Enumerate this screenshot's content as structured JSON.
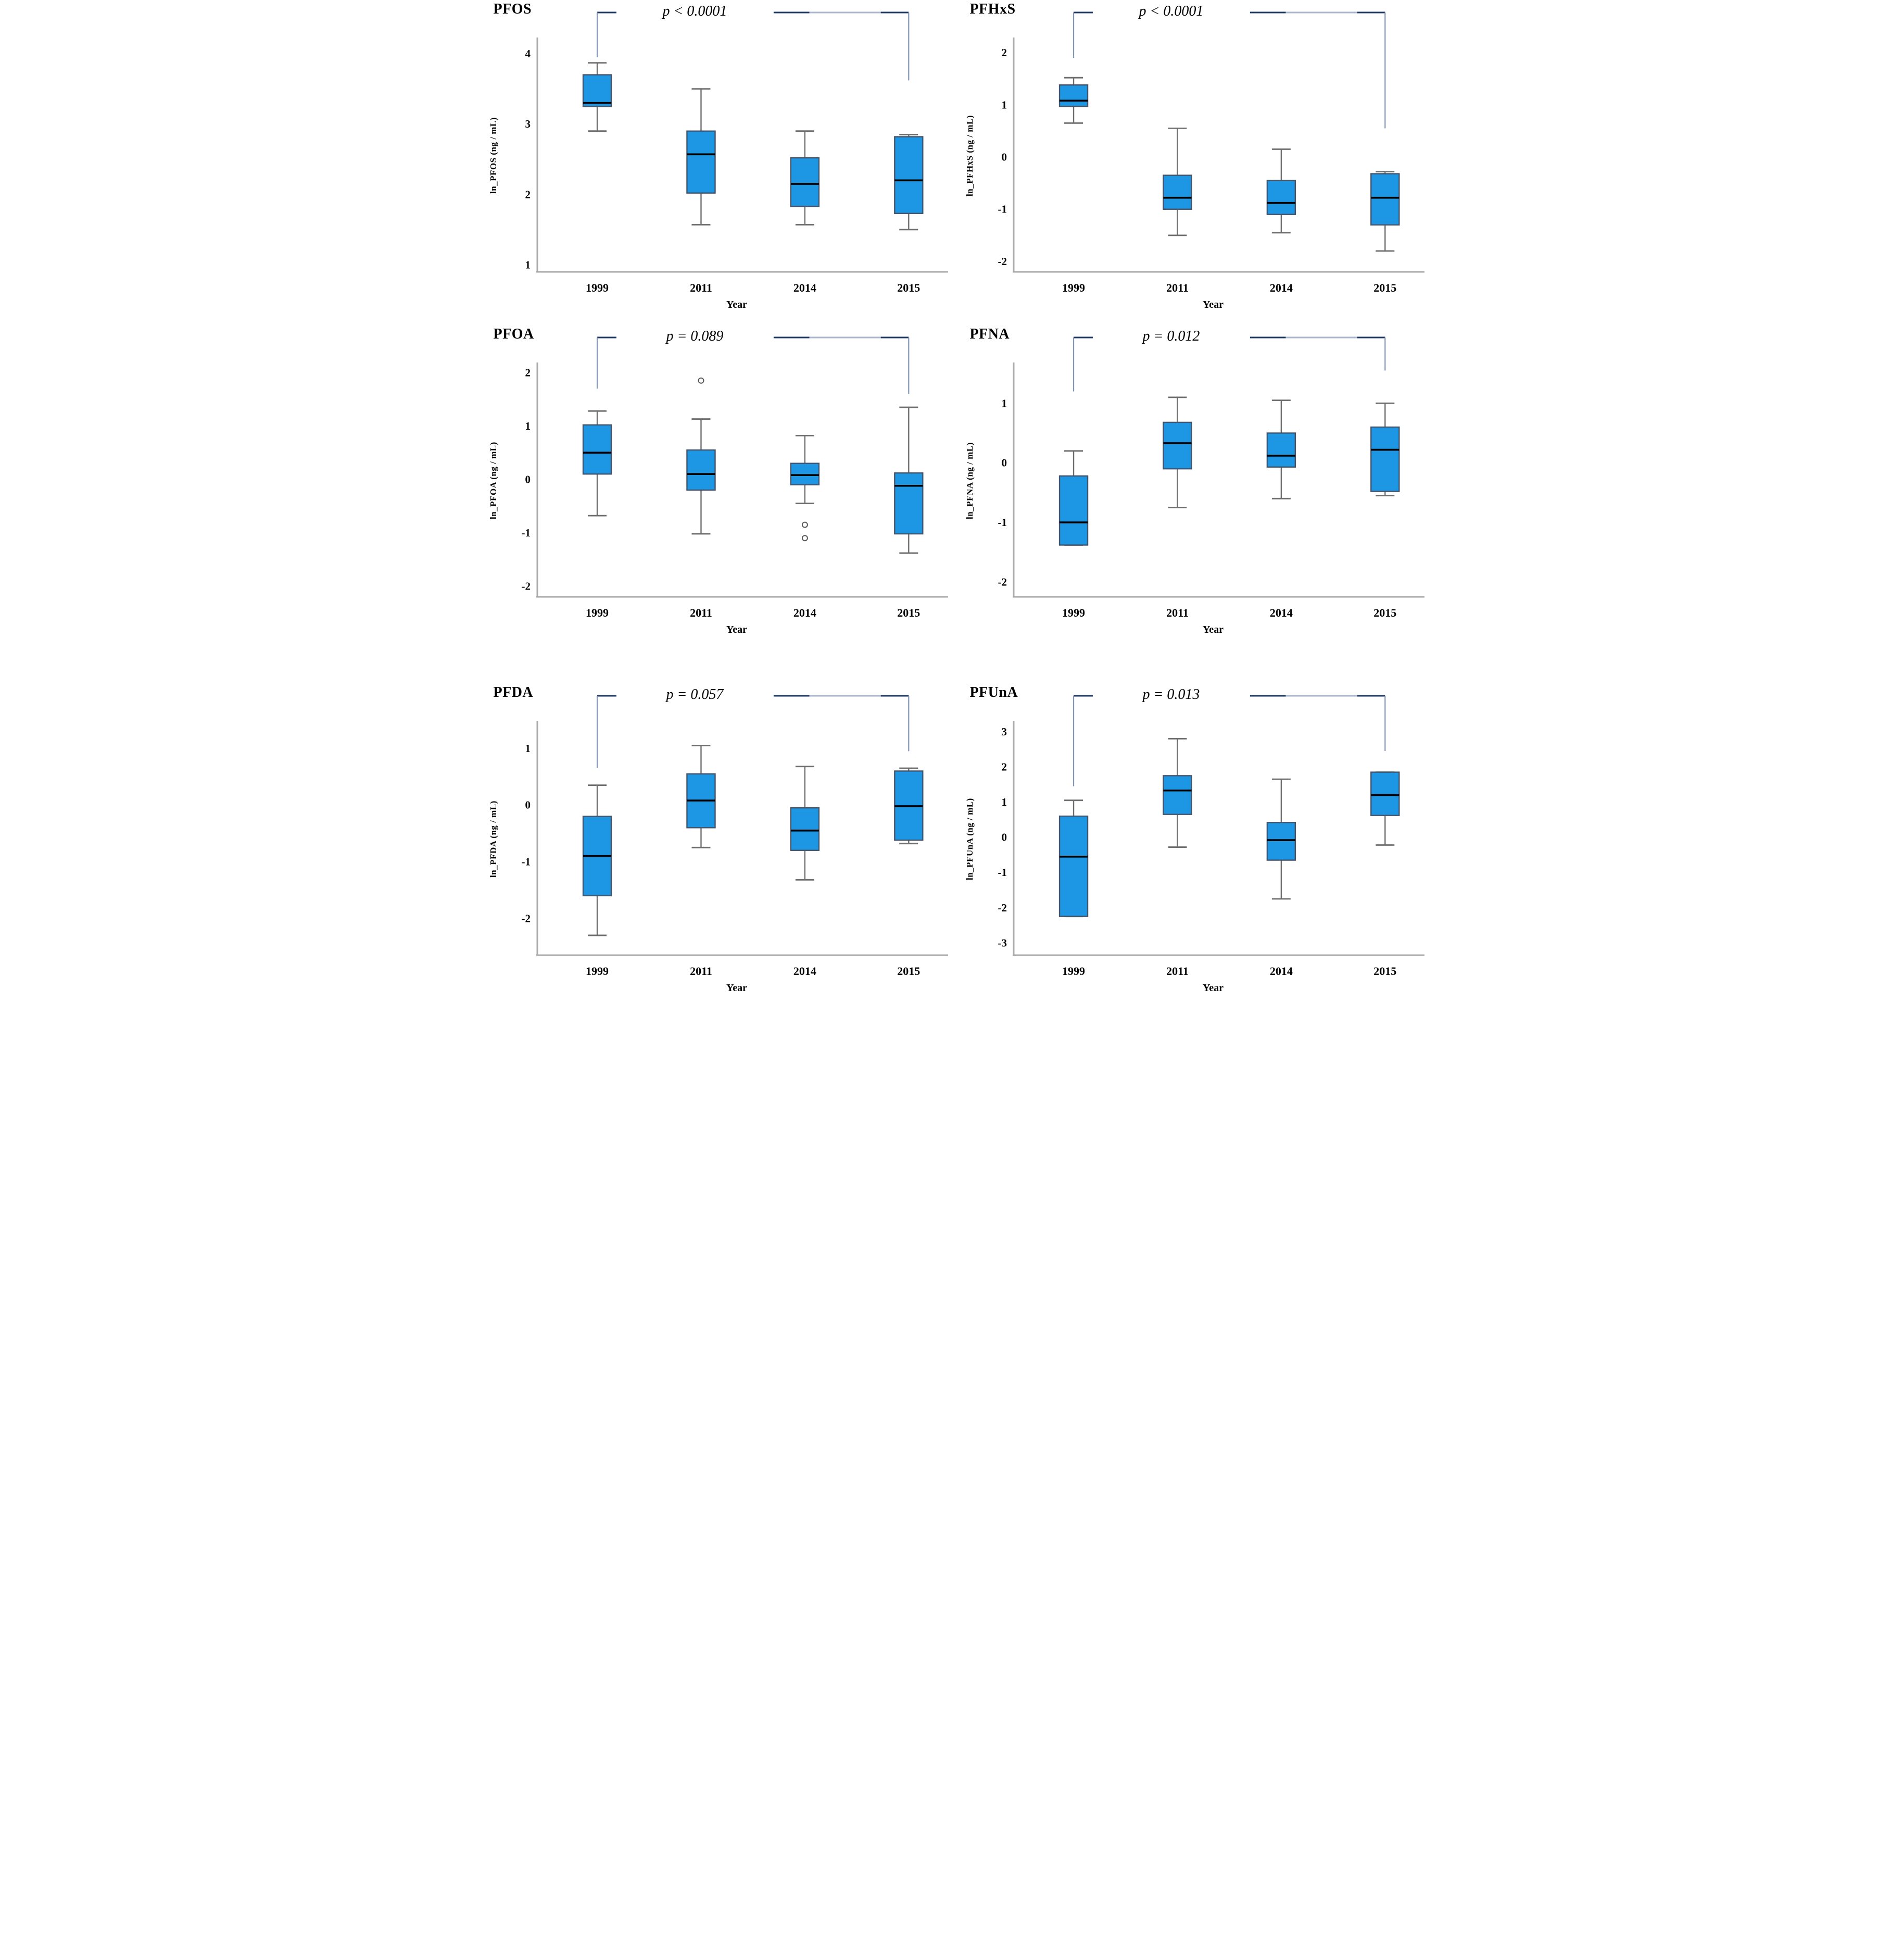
{
  "figure": {
    "background": "#ffffff",
    "columns": 2,
    "rows": 3
  },
  "style": {
    "box_fill": "#1D96E4",
    "box_border": "#44546A",
    "median_color": "#000000",
    "whisker_color": "#6E6E6E",
    "axis_color": "#ABABAB",
    "bracket_dark": "#1F3864",
    "bracket_light": "#8496B8",
    "bracket_light2": "#A9B6CE",
    "outlier_color": "#595959",
    "text_color": "#000000"
  },
  "chart_data": [
    {
      "type": "box",
      "title": "PFOS",
      "xlabel": "Year",
      "ylabel": "ln_PFOS (ng / mL)",
      "categories": [
        "1999",
        "2011",
        "2014",
        "2015"
      ],
      "ylim": [
        0.9,
        4.2
      ],
      "yticks": [
        1,
        2,
        3,
        4
      ],
      "annotation": {
        "text": "p < 0.0001",
        "compare": [
          "1999",
          "2015"
        ],
        "left_stop": 3.95,
        "right_stop": 3.62
      },
      "boxes": [
        {
          "category": "1999",
          "low": 2.9,
          "q1": 3.25,
          "median": 3.3,
          "q3": 3.7,
          "high": 3.87,
          "outliers": []
        },
        {
          "category": "2011",
          "low": 1.57,
          "q1": 2.02,
          "median": 2.57,
          "q3": 2.9,
          "high": 3.5,
          "outliers": []
        },
        {
          "category": "2014",
          "low": 1.57,
          "q1": 1.83,
          "median": 2.15,
          "q3": 2.52,
          "high": 2.9,
          "outliers": []
        },
        {
          "category": "2015",
          "low": 1.5,
          "q1": 1.73,
          "median": 2.2,
          "q3": 2.82,
          "high": 2.85,
          "outliers": []
        }
      ]
    },
    {
      "type": "box",
      "title": "PFHxS",
      "xlabel": "Year",
      "ylabel": "ln_PFHxS (ng / mL)",
      "categories": [
        "1999",
        "2011",
        "2014",
        "2015"
      ],
      "ylim": [
        -2.2,
        2.25
      ],
      "yticks": [
        -2,
        -1,
        0,
        1,
        2
      ],
      "annotation": {
        "text": "p < 0.0001",
        "compare": [
          "1999",
          "2015"
        ],
        "left_stop": 1.9,
        "right_stop": 0.55
      },
      "boxes": [
        {
          "category": "1999",
          "low": 0.65,
          "q1": 0.97,
          "median": 1.08,
          "q3": 1.38,
          "high": 1.52,
          "outliers": []
        },
        {
          "category": "2011",
          "low": -1.5,
          "q1": -1.0,
          "median": -0.78,
          "q3": -0.35,
          "high": 0.55,
          "outliers": []
        },
        {
          "category": "2014",
          "low": -1.45,
          "q1": -1.1,
          "median": -0.88,
          "q3": -0.45,
          "high": 0.15,
          "outliers": []
        },
        {
          "category": "2015",
          "low": -1.8,
          "q1": -1.3,
          "median": -0.78,
          "q3": -0.32,
          "high": -0.28,
          "outliers": []
        }
      ]
    },
    {
      "type": "box",
      "title": "PFOA",
      "xlabel": "Year",
      "ylabel": "ln_PFOA (ng / mL)",
      "categories": [
        "1999",
        "2011",
        "2014",
        "2015"
      ],
      "ylim": [
        -2.2,
        2.15
      ],
      "yticks": [
        -2,
        -1,
        0,
        1,
        2
      ],
      "annotation": {
        "text": "p = 0.089",
        "compare": [
          "1999",
          "2015"
        ],
        "left_stop": 1.7,
        "right_stop": 1.6
      },
      "boxes": [
        {
          "category": "1999",
          "low": -0.68,
          "q1": 0.1,
          "median": 0.5,
          "q3": 1.02,
          "high": 1.28,
          "outliers": []
        },
        {
          "category": "2011",
          "low": -1.02,
          "q1": -0.2,
          "median": 0.1,
          "q3": 0.55,
          "high": 1.13,
          "outliers": [
            1.85
          ]
        },
        {
          "category": "2014",
          "low": -0.45,
          "q1": -0.1,
          "median": 0.08,
          "q3": 0.3,
          "high": 0.82,
          "outliers": [
            -0.85,
            -1.1
          ]
        },
        {
          "category": "2015",
          "low": -1.38,
          "q1": -1.02,
          "median": -0.12,
          "q3": 0.12,
          "high": 1.35,
          "outliers": []
        }
      ]
    },
    {
      "type": "box",
      "title": "PFNA",
      "xlabel": "Year",
      "ylabel": "ln_PFNA (ng / mL)",
      "categories": [
        "1999",
        "2011",
        "2014",
        "2015"
      ],
      "ylim": [
        -2.25,
        1.65
      ],
      "yticks": [
        -2,
        -1,
        0,
        1
      ],
      "annotation": {
        "text": "p = 0.012",
        "compare": [
          "1999",
          "2015"
        ],
        "left_stop": 1.2,
        "right_stop": 1.55
      },
      "boxes": [
        {
          "category": "1999",
          "low": -1.38,
          "q1": -1.38,
          "median": -1.0,
          "q3": -0.22,
          "high": 0.2,
          "outliers": []
        },
        {
          "category": "2011",
          "low": -0.75,
          "q1": -0.1,
          "median": 0.33,
          "q3": 0.68,
          "high": 1.1,
          "outliers": []
        },
        {
          "category": "2014",
          "low": -0.6,
          "q1": -0.07,
          "median": 0.12,
          "q3": 0.5,
          "high": 1.05,
          "outliers": []
        },
        {
          "category": "2015",
          "low": -0.55,
          "q1": -0.48,
          "median": 0.22,
          "q3": 0.6,
          "high": 1.0,
          "outliers": []
        }
      ]
    },
    {
      "type": "box",
      "title": "PFDA",
      "xlabel": "Year",
      "ylabel": "ln_PFDA (ng / mL)",
      "categories": [
        "1999",
        "2011",
        "2014",
        "2015"
      ],
      "ylim": [
        -2.65,
        1.45
      ],
      "yticks": [
        -2,
        -1,
        0,
        1
      ],
      "annotation": {
        "text": "p = 0.057",
        "compare": [
          "1999",
          "2015"
        ],
        "left_stop": 0.65,
        "right_stop": 0.95
      },
      "boxes": [
        {
          "category": "1999",
          "low": -2.3,
          "q1": -1.6,
          "median": -0.9,
          "q3": -0.2,
          "high": 0.35,
          "outliers": []
        },
        {
          "category": "2011",
          "low": -0.75,
          "q1": -0.4,
          "median": 0.08,
          "q3": 0.55,
          "high": 1.05,
          "outliers": []
        },
        {
          "category": "2014",
          "low": -1.32,
          "q1": -0.8,
          "median": -0.45,
          "q3": -0.05,
          "high": 0.68,
          "outliers": []
        },
        {
          "category": "2015",
          "low": -0.68,
          "q1": -0.62,
          "median": -0.02,
          "q3": 0.6,
          "high": 0.65,
          "outliers": []
        }
      ]
    },
    {
      "type": "box",
      "title": "PFUnA",
      "xlabel": "Year",
      "ylabel": "ln_PFUnA (ng / mL)",
      "categories": [
        "1999",
        "2011",
        "2014",
        "2015"
      ],
      "ylim": [
        -3.35,
        3.25
      ],
      "yticks": [
        -3,
        -2,
        -1,
        0,
        1,
        2,
        3
      ],
      "annotation": {
        "text": "p = 0.013",
        "compare": [
          "1999",
          "2015"
        ],
        "left_stop": 1.45,
        "right_stop": 2.45
      },
      "boxes": [
        {
          "category": "1999",
          "low": -2.25,
          "q1": -2.25,
          "median": -0.55,
          "q3": 0.6,
          "high": 1.05,
          "outliers": []
        },
        {
          "category": "2011",
          "low": -0.28,
          "q1": 0.65,
          "median": 1.33,
          "q3": 1.75,
          "high": 2.8,
          "outliers": []
        },
        {
          "category": "2014",
          "low": -1.75,
          "q1": -0.65,
          "median": -0.08,
          "q3": 0.42,
          "high": 1.65,
          "outliers": []
        },
        {
          "category": "2015",
          "low": -0.22,
          "q1": 0.62,
          "median": 1.2,
          "q3": 1.85,
          "high": 1.85,
          "outliers": []
        }
      ]
    }
  ]
}
